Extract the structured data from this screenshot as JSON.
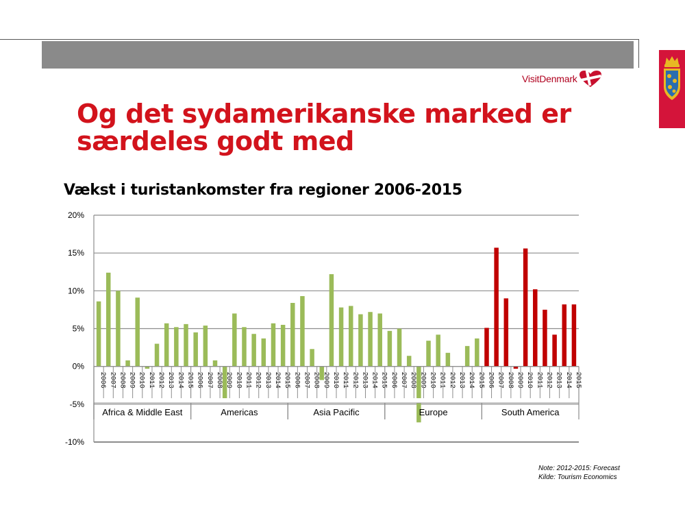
{
  "brand": {
    "name": "VisitDenmark"
  },
  "slide": {
    "title_line1": "Og det sydamerikanske marked er",
    "title_line2": "særdeles godt med"
  },
  "colors": {
    "title": "#d2131c",
    "green": "#9bbb59",
    "red": "#c00000",
    "crest_bg": "#d4143a"
  },
  "chart_data": {
    "type": "bar",
    "title": "Vækst i turistankomster fra regioner 2006-2015",
    "ylabel": "",
    "ylim": [
      -10,
      20
    ],
    "yticks": [
      20,
      15,
      10,
      5,
      0,
      -5,
      -10
    ],
    "ytick_labels": [
      "20%",
      "15%",
      "10%",
      "5%",
      "0%",
      "-5%",
      "-10%"
    ],
    "groups": [
      {
        "name": "Africa & Middle East",
        "color": "#9bbb59",
        "years": [
          "2006",
          "2007",
          "2008",
          "2009",
          "2010",
          "2011",
          "2012",
          "2013",
          "2014",
          "2015"
        ],
        "values": [
          8.6,
          12.4,
          10.0,
          0.8,
          9.1,
          -0.3,
          3.0,
          5.7,
          5.2,
          5.6
        ]
      },
      {
        "name": "Americas",
        "color": "#9bbb59",
        "years": [
          "2006",
          "2007",
          "2008",
          "2009",
          "2010",
          "2011",
          "2012",
          "2013",
          "2014",
          "2015"
        ],
        "values": [
          4.5,
          5.4,
          0.8,
          -4.2,
          7.0,
          5.2,
          4.3,
          3.7,
          5.7,
          5.5
        ]
      },
      {
        "name": "Asia Pacific",
        "color": "#9bbb59",
        "years": [
          "2006",
          "2007",
          "2008",
          "2009",
          "2010",
          "2011",
          "2012",
          "2013",
          "2014",
          "2015"
        ],
        "values": [
          8.4,
          9.3,
          2.3,
          -1.8,
          12.2,
          7.8,
          8.0,
          6.9,
          7.2,
          7.0
        ]
      },
      {
        "name": "Europe",
        "color": "#9bbb59",
        "years": [
          "2006",
          "2007",
          "2008",
          "2009",
          "2010",
          "2011",
          "2012",
          "2013",
          "2014",
          "2015"
        ],
        "values": [
          4.7,
          5.0,
          1.4,
          -7.4,
          3.4,
          4.2,
          1.8,
          0.0,
          2.7,
          3.7
        ]
      },
      {
        "name": "South America",
        "color": "#c00000",
        "years": [
          "2006",
          "2007",
          "2008",
          "2009",
          "2010",
          "2011",
          "2012",
          "2013",
          "2014",
          "2015"
        ],
        "values": [
          5.1,
          15.7,
          9.0,
          -0.3,
          15.6,
          10.2,
          7.5,
          4.2,
          8.2,
          8.2
        ]
      }
    ]
  },
  "note": {
    "line1": "Note: 2012-2015: Forecast",
    "line2": "Kilde: Tourism Economics"
  }
}
